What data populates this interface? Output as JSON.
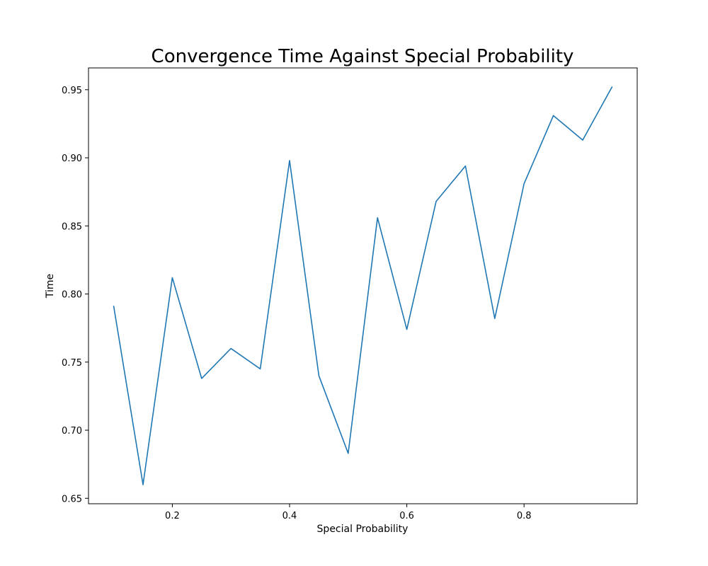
{
  "chart_data": {
    "type": "line",
    "title": "Convergence Time Against Special Probability",
    "xlabel": "Special Probability",
    "ylabel": "Time",
    "xlim": [
      0.057,
      0.993
    ],
    "ylim": [
      0.646,
      0.966
    ],
    "xticks": [
      0.2,
      0.4,
      0.6,
      0.8
    ],
    "xtick_labels": [
      "0.2",
      "0.4",
      "0.6",
      "0.8"
    ],
    "yticks": [
      0.65,
      0.7,
      0.75,
      0.8,
      0.85,
      0.9,
      0.95
    ],
    "ytick_labels": [
      "0.65",
      "0.70",
      "0.75",
      "0.80",
      "0.85",
      "0.90",
      "0.95"
    ],
    "grid": false,
    "series": [
      {
        "color": "#1f77b4",
        "x": [
          0.1,
          0.15,
          0.2,
          0.25,
          0.3,
          0.35,
          0.4,
          0.45,
          0.5,
          0.55,
          0.6,
          0.65,
          0.7,
          0.75,
          0.8,
          0.85,
          0.9,
          0.95
        ],
        "y": [
          0.791,
          0.66,
          0.812,
          0.738,
          0.76,
          0.745,
          0.898,
          0.74,
          0.683,
          0.856,
          0.774,
          0.868,
          0.894,
          0.782,
          0.881,
          0.931,
          0.913,
          0.952
        ]
      }
    ]
  }
}
